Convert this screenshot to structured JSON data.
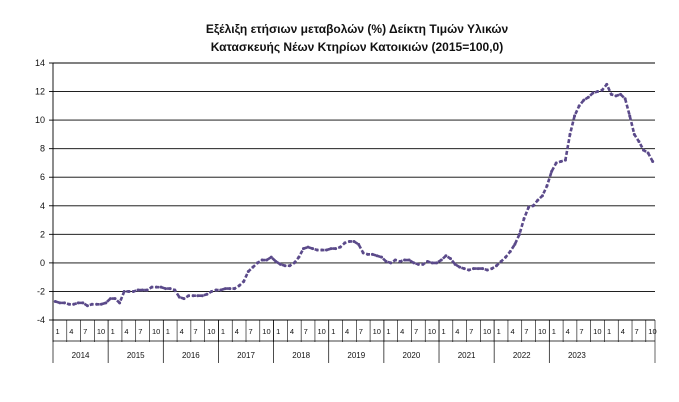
{
  "chart_data": {
    "type": "line",
    "title_line1": "Εξέλιξη ετήσιων μεταβολών (%) Δείκτη Τιμών Υλικών",
    "title_line2": "Κατασκευής Νέων Κτηρίων Κατοικιών (2015=100,0)",
    "ylim": [
      -4,
      14
    ],
    "y_ticks": [
      "-4",
      "-2",
      "0",
      "2",
      "4",
      "6",
      "8",
      "10",
      "12",
      "14"
    ],
    "y_tick_values": [
      -4,
      -2,
      0,
      2,
      4,
      6,
      8,
      10,
      12,
      14
    ],
    "grid": true,
    "month_ticks": [
      "1",
      "4",
      "7",
      "10"
    ],
    "years": [
      "2014",
      "2015",
      "2016",
      "2017",
      "2018",
      "2019",
      "2020",
      "2021",
      "2022",
      "2023"
    ],
    "line_color": "#5b4a8a",
    "series": [
      {
        "values": [
          -2.7,
          -2.8,
          -2.8,
          -2.9,
          -2.9,
          -2.8,
          -2.8,
          -3.0,
          -2.9,
          -2.9,
          -2.9,
          -2.8,
          -2.5,
          -2.5,
          -2.8,
          -2.0,
          -2.0,
          -2.0,
          -1.9,
          -1.9,
          -1.9,
          -1.7,
          -1.7,
          -1.7,
          -1.8,
          -1.8,
          -1.9,
          -2.4,
          -2.5,
          -2.3,
          -2.3,
          -2.3,
          -2.3,
          -2.2,
          -2.0,
          -1.9,
          -1.9,
          -1.8,
          -1.8,
          -1.8,
          -1.6,
          -1.3,
          -0.6,
          -0.3,
          0.0,
          0.2,
          0.2,
          0.4,
          0.1,
          -0.1,
          -0.2,
          -0.2,
          0.0,
          0.4,
          1.0,
          1.1,
          1.0,
          0.9,
          0.9,
          0.9,
          1.0,
          1.0,
          1.1,
          1.4,
          1.5,
          1.5,
          1.3,
          0.7,
          0.6,
          0.6,
          0.5,
          0.4,
          0.1,
          0.0,
          0.2,
          0.1,
          0.2,
          0.2,
          0.0,
          -0.1,
          -0.1,
          0.1,
          0.0,
          0.0,
          0.2,
          0.5,
          0.3,
          -0.1,
          -0.3,
          -0.4,
          -0.5,
          -0.4,
          -0.4,
          -0.4,
          -0.5,
          -0.4,
          -0.2,
          0.1,
          0.4,
          0.8,
          1.3,
          2.0,
          3.1,
          3.9,
          4.0,
          4.4,
          4.7,
          5.4,
          6.4,
          7.0,
          7.1,
          7.2,
          9.0,
          10.3,
          11.0,
          11.4,
          11.6,
          11.9,
          12.0,
          12.1,
          12.5,
          11.8,
          11.7,
          11.8,
          11.5,
          10.3,
          9.0,
          8.5,
          7.9,
          7.7,
          7.1
        ]
      }
    ]
  }
}
